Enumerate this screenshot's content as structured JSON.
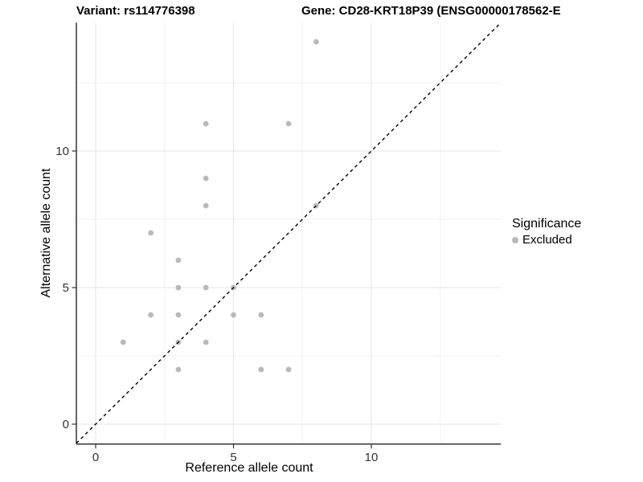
{
  "header": {
    "variant_title": "Variant: rs114776398",
    "gene_title": "Gene: CD28-KRT18P39 (ENSG00000178562-E"
  },
  "chart_data": {
    "type": "scatter",
    "xlabel": "Reference allele count",
    "ylabel": "Alternative allele count",
    "xlim": [
      -0.7,
      14.7
    ],
    "ylim": [
      -0.7,
      14.7
    ],
    "x_ticks": [
      0,
      5,
      10
    ],
    "y_ticks": [
      0,
      5,
      10
    ],
    "major_gridlines": [
      0,
      5,
      10
    ],
    "minor_gridlines": [
      2.5,
      7.5,
      12.5
    ],
    "grid": true,
    "identity_line": {
      "style": "dashed",
      "from": [
        -0.7,
        -0.7
      ],
      "to": [
        14.7,
        14.7
      ]
    },
    "legend_position": "right",
    "series": [
      {
        "name": "Excluded",
        "color": "#b9b9b9",
        "points": [
          [
            1,
            3
          ],
          [
            2,
            4
          ],
          [
            2,
            7
          ],
          [
            3,
            2
          ],
          [
            3,
            3
          ],
          [
            3,
            4
          ],
          [
            3,
            5
          ],
          [
            3,
            6
          ],
          [
            4,
            3
          ],
          [
            4,
            5
          ],
          [
            4,
            8
          ],
          [
            4,
            9
          ],
          [
            4,
            11
          ],
          [
            5,
            4
          ],
          [
            5,
            5
          ],
          [
            6,
            2
          ],
          [
            6,
            4
          ],
          [
            7,
            2
          ],
          [
            7,
            11
          ],
          [
            8,
            8
          ],
          [
            8,
            14
          ]
        ]
      }
    ]
  },
  "legend": {
    "title": "Significance",
    "items": [
      {
        "label": "Excluded",
        "color": "#b9b9b9"
      }
    ]
  },
  "colors": {
    "point": "#b9b9b9",
    "grid_major": "#e6e6e6",
    "grid_minor": "#f2f2f2",
    "axis_line": "#333333",
    "tick": "#333333",
    "tick_label": "#333333",
    "identity_line": "#000000"
  }
}
